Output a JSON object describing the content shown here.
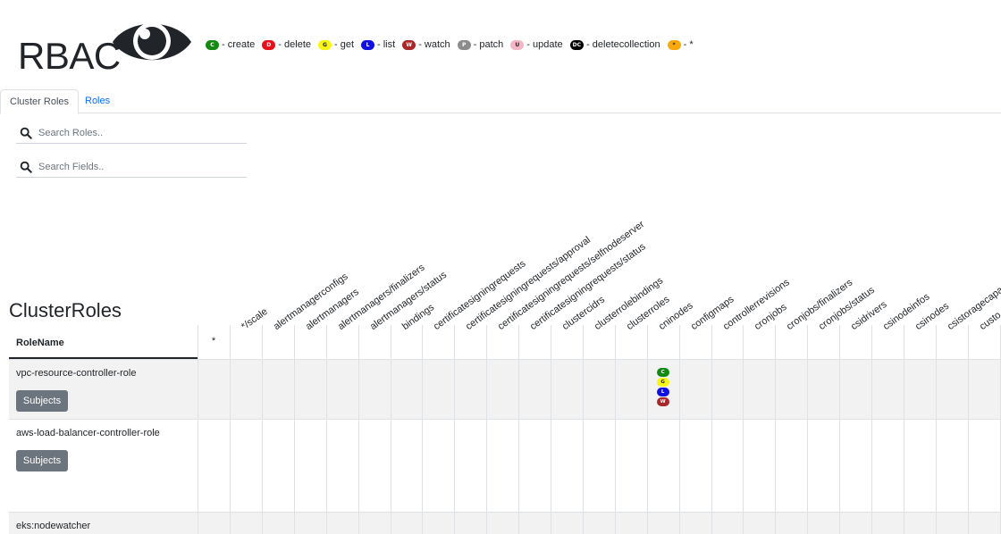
{
  "header": {
    "title": "RBAC",
    "logo_icon": "eye-icon"
  },
  "legend": [
    {
      "code": "C",
      "label": "- create",
      "bg": "#128a12",
      "fg": "#ffffff"
    },
    {
      "code": "D",
      "label": "- delete",
      "bg": "#e8101a",
      "fg": "#ffffff"
    },
    {
      "code": "G",
      "label": "- get",
      "bg": "#f6f612",
      "fg": "#212529"
    },
    {
      "code": "L",
      "label": "- list",
      "bg": "#1010e0",
      "fg": "#ffffff"
    },
    {
      "code": "W",
      "label": "- watch",
      "bg": "#a8282a",
      "fg": "#ffffff"
    },
    {
      "code": "P",
      "label": "- patch",
      "bg": "#8c8c8c",
      "fg": "#ffffff"
    },
    {
      "code": "U",
      "label": "- update",
      "bg": "#f4b6c6",
      "fg": "#212529"
    },
    {
      "code": "DC",
      "label": "- deletecollection",
      "bg": "#000000",
      "fg": "#ffffff"
    },
    {
      "code": "*",
      "label": "- *",
      "bg": "#f9a90c",
      "fg": "#212529"
    }
  ],
  "tabs": {
    "active": "Cluster Roles",
    "other": "Roles"
  },
  "search": {
    "roles_placeholder": "Search Roles..",
    "fields_placeholder": "Search Fields.."
  },
  "section": {
    "title": "ClusterRoles",
    "rolename_header": "RoleName",
    "star_header": "*"
  },
  "columns": [
    "*/scale",
    "alertmanagerconfigs",
    "alertmanagers",
    "alertmanagers/finalizers",
    "alertmanagers/status",
    "bindings",
    "certificatesigningrequests",
    "certificatesigningrequests/approval",
    "certificatesigningrequests/selfnodeserver",
    "certificatesigningrequests/status",
    "clustercidrs",
    "clusterrolebindings",
    "clusterroles",
    "cninodes",
    "configmaps",
    "controllerrevisions",
    "cronjobs",
    "cronjobs/finalizers",
    "cronjobs/status",
    "csidrivers",
    "csinodeinfos",
    "csinodes",
    "csistoragecapa",
    "custo"
  ],
  "rows": [
    {
      "name": "vpc-resource-controller-role",
      "button": "Subjects",
      "cninodes": [
        "C",
        "G",
        "L",
        "W"
      ]
    },
    {
      "name": "aws-load-balancer-controller-role",
      "button": "Subjects"
    },
    {
      "name": "eks:nodewatcher"
    }
  ]
}
